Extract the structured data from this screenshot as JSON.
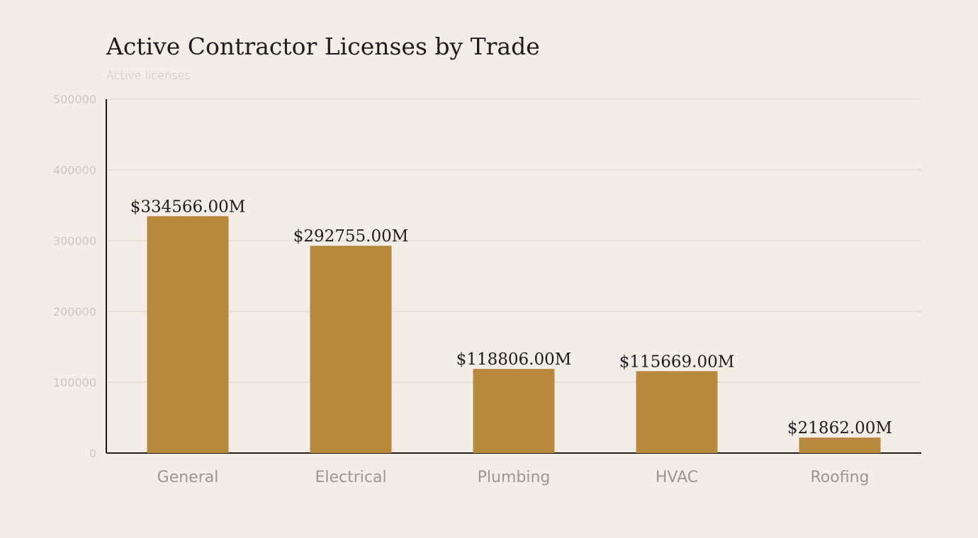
{
  "chart_data": {
    "type": "bar",
    "title": "Active Contractor Licenses by Trade",
    "subtitle": "Active licenses",
    "xlabel": "",
    "ylabel": "",
    "categories": [
      "General",
      "Electrical",
      "Plumbing",
      "HVAC",
      "Roofing"
    ],
    "values": [
      334566,
      292755,
      118806,
      115669,
      21862
    ],
    "data_labels": [
      "$334566.00M",
      "$292755.00M",
      "$118806.00M",
      "$115669.00M",
      "$21862.00M"
    ],
    "ylim": [
      0,
      500000
    ],
    "yticks": [
      0,
      100000,
      200000,
      300000,
      400000,
      500000
    ],
    "grid": true,
    "legend": "none",
    "colors": {
      "bar": "#b8893d",
      "grid": "#dcd7c9",
      "axis": "#1d1d1f",
      "background": "#f2eee6"
    }
  }
}
